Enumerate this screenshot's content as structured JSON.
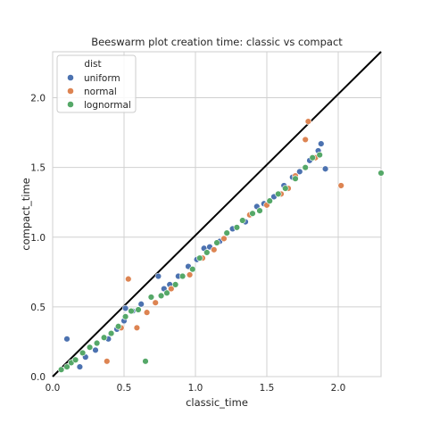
{
  "chart_data": {
    "type": "scatter",
    "title": "Beeswarm plot creation time: classic vs compact",
    "xlabel": "classic_time",
    "ylabel": "compact_time",
    "xlim": [
      0,
      2.3
    ],
    "ylim": [
      0,
      2.33
    ],
    "xticks": [
      "0.0",
      "0.5",
      "1.0",
      "1.5",
      "2.0"
    ],
    "yticks": [
      "0.0",
      "0.5",
      "1.0",
      "1.5",
      "2.0"
    ],
    "grid": true,
    "legend": {
      "title": "dist",
      "placement": "top-left"
    },
    "reference_line": {
      "from": [
        0,
        0
      ],
      "to": [
        2.3,
        2.33
      ],
      "color": "#000000"
    },
    "series": [
      {
        "name": "uniform",
        "color": "#4c72b0",
        "points": [
          [
            0.1,
            0.27
          ],
          [
            0.19,
            0.07
          ],
          [
            0.23,
            0.14
          ],
          [
            0.3,
            0.19
          ],
          [
            0.39,
            0.27
          ],
          [
            0.45,
            0.34
          ],
          [
            0.5,
            0.4
          ],
          [
            0.51,
            0.49
          ],
          [
            0.56,
            0.47
          ],
          [
            0.62,
            0.52
          ],
          [
            0.74,
            0.72
          ],
          [
            0.78,
            0.63
          ],
          [
            0.82,
            0.66
          ],
          [
            0.88,
            0.72
          ],
          [
            0.95,
            0.79
          ],
          [
            1.01,
            0.84
          ],
          [
            1.06,
            0.92
          ],
          [
            1.1,
            0.93
          ],
          [
            1.17,
            0.97
          ],
          [
            1.26,
            1.06
          ],
          [
            1.35,
            1.11
          ],
          [
            1.43,
            1.22
          ],
          [
            1.48,
            1.24
          ],
          [
            1.55,
            1.29
          ],
          [
            1.62,
            1.37
          ],
          [
            1.68,
            1.43
          ],
          [
            1.73,
            1.47
          ],
          [
            1.8,
            1.55
          ],
          [
            1.86,
            1.62
          ],
          [
            1.88,
            1.67
          ],
          [
            1.91,
            1.49
          ]
        ]
      },
      {
        "name": "normal",
        "color": "#dd8452",
        "points": [
          [
            0.38,
            0.11
          ],
          [
            0.48,
            0.35
          ],
          [
            0.53,
            0.7
          ],
          [
            0.59,
            0.35
          ],
          [
            0.66,
            0.46
          ],
          [
            0.72,
            0.53
          ],
          [
            0.83,
            0.63
          ],
          [
            0.96,
            0.73
          ],
          [
            1.05,
            0.85
          ],
          [
            1.13,
            0.91
          ],
          [
            1.2,
            0.99
          ],
          [
            1.38,
            1.16
          ],
          [
            1.5,
            1.23
          ],
          [
            1.6,
            1.31
          ],
          [
            1.65,
            1.35
          ],
          [
            1.7,
            1.44
          ],
          [
            1.77,
            1.7
          ],
          [
            1.79,
            1.83
          ],
          [
            1.84,
            1.57
          ],
          [
            2.02,
            1.37
          ]
        ]
      },
      {
        "name": "lognormal",
        "color": "#55a868",
        "points": [
          [
            0.06,
            0.05
          ],
          [
            0.1,
            0.07
          ],
          [
            0.13,
            0.1
          ],
          [
            0.16,
            0.12
          ],
          [
            0.21,
            0.17
          ],
          [
            0.26,
            0.21
          ],
          [
            0.31,
            0.24
          ],
          [
            0.36,
            0.28
          ],
          [
            0.41,
            0.31
          ],
          [
            0.46,
            0.36
          ],
          [
            0.51,
            0.43
          ],
          [
            0.55,
            0.47
          ],
          [
            0.6,
            0.48
          ],
          [
            0.65,
            0.11
          ],
          [
            0.69,
            0.57
          ],
          [
            0.76,
            0.58
          ],
          [
            0.8,
            0.6
          ],
          [
            0.86,
            0.66
          ],
          [
            0.91,
            0.72
          ],
          [
            0.98,
            0.77
          ],
          [
            1.03,
            0.85
          ],
          [
            1.08,
            0.89
          ],
          [
            1.15,
            0.96
          ],
          [
            1.22,
            1.03
          ],
          [
            1.29,
            1.07
          ],
          [
            1.33,
            1.12
          ],
          [
            1.4,
            1.17
          ],
          [
            1.45,
            1.19
          ],
          [
            1.52,
            1.26
          ],
          [
            1.58,
            1.31
          ],
          [
            1.63,
            1.35
          ],
          [
            1.7,
            1.42
          ],
          [
            1.77,
            1.5
          ],
          [
            1.82,
            1.57
          ],
          [
            1.87,
            1.59
          ],
          [
            2.3,
            1.46
          ]
        ]
      }
    ]
  }
}
